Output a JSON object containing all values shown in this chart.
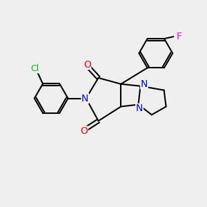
{
  "background_color": "#EFEFEF",
  "bond_color": "#000000",
  "N_color": "#0000FF",
  "O_color": "#FF0000",
  "Cl_color": "#00BB00",
  "F_color": "#FF00FF",
  "figsize": [
    3.0,
    3.0
  ],
  "dpi": 100,
  "xlim": [
    0,
    10
  ],
  "ylim": [
    0,
    10
  ]
}
